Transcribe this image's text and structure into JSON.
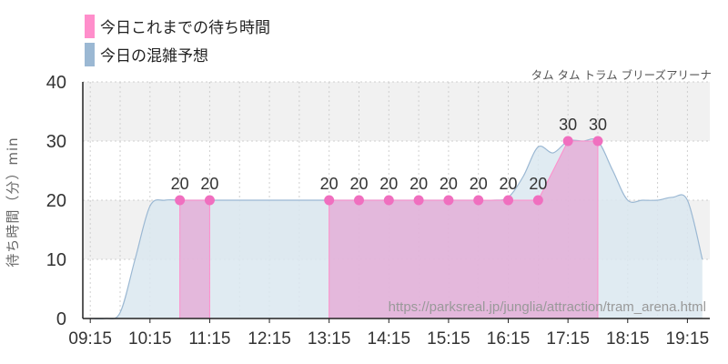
{
  "legend": {
    "actual_label": "今日これまでの待ち時間",
    "forecast_label": "今日の混雑予想"
  },
  "attraction_name": "タム タム トラム ブリーズアリーナ",
  "watermark": "https://parksreal.jp/junglia/attraction/tram_arena.html",
  "colors": {
    "actual": "#ff8ecb",
    "actual_fill": "#e6a3d3",
    "actual_dot": "#f06fbf",
    "forecast": "#9bb8d3",
    "forecast_fill": "#dbe7f0",
    "band": "#f1f1f1",
    "axis": "#222222"
  },
  "chart_data": {
    "type": "area",
    "ylabel": "待ち時間（分）min",
    "ylim": [
      0,
      40
    ],
    "y_ticks": [
      "0",
      "10",
      "20",
      "30",
      "40"
    ],
    "x_ticks": [
      "09:15",
      "10:15",
      "11:15",
      "12:15",
      "13:15",
      "14:15",
      "15:15",
      "16:15",
      "17:15",
      "18:15",
      "19:15"
    ],
    "xlim": [
      "09:15",
      "19:30"
    ],
    "grid": true,
    "series": [
      {
        "name": "今日の混雑予想",
        "x": [
          "09:15",
          "09:30",
          "09:45",
          "10:00",
          "10:15",
          "10:30",
          "10:45",
          "11:00",
          "11:15",
          "11:30",
          "11:45",
          "12:00",
          "12:15",
          "12:30",
          "12:45",
          "13:00",
          "13:15",
          "13:30",
          "13:45",
          "14:00",
          "14:15",
          "14:30",
          "14:45",
          "15:00",
          "15:15",
          "15:30",
          "15:45",
          "16:00",
          "16:15",
          "16:30",
          "16:45",
          "17:00",
          "17:15",
          "17:30",
          "17:45",
          "18:00",
          "18:15",
          "18:30",
          "18:45",
          "19:00",
          "19:15",
          "19:30"
        ],
        "values": [
          0,
          0,
          1,
          10,
          19,
          20,
          20,
          20,
          20,
          20,
          20,
          20,
          20,
          20,
          20,
          20,
          20,
          20,
          20,
          20,
          20,
          20,
          20,
          20,
          20,
          20,
          20,
          20,
          20.5,
          24,
          29,
          28,
          30,
          30,
          30,
          25,
          20,
          20,
          20,
          20.5,
          20,
          10
        ]
      },
      {
        "name": "今日これまでの待ち時間",
        "segments": [
          {
            "x": [
              "10:45",
              "11:15"
            ],
            "values": [
              20,
              20
            ]
          },
          {
            "x": [
              "13:15",
              "13:45",
              "14:15",
              "14:45",
              "15:15",
              "15:45",
              "16:15",
              "16:45",
              "17:15",
              "17:45"
            ],
            "values": [
              20,
              20,
              20,
              20,
              20,
              20,
              20,
              20,
              30,
              30
            ]
          }
        ]
      }
    ]
  }
}
